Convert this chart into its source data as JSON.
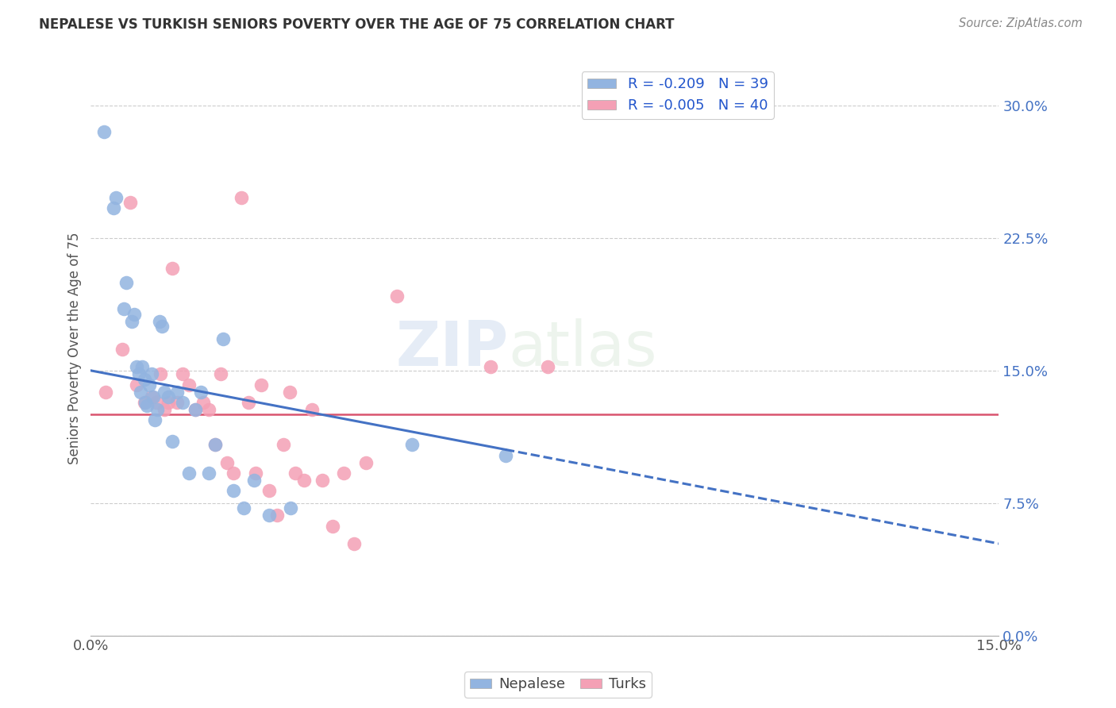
{
  "title": "NEPALESE VS TURKISH SENIORS POVERTY OVER THE AGE OF 75 CORRELATION CHART",
  "source": "Source: ZipAtlas.com",
  "ylabel_label": "Seniors Poverty Over the Age of 75",
  "ylabel_ticks": [
    0.0,
    7.5,
    15.0,
    22.5,
    30.0
  ],
  "xlim": [
    0.0,
    15.0
  ],
  "ylim": [
    0.0,
    32.5
  ],
  "nepalese_R": -0.209,
  "nepalese_N": 39,
  "turks_R": -0.005,
  "turks_N": 40,
  "nepalese_color": "#92b4e0",
  "turks_color": "#f4a0b5",
  "nepalese_line_color": "#4472c4",
  "turks_line_color": "#d9546e",
  "legend_R_color": "#2255cc",
  "nepalese_x": [
    0.22,
    0.38,
    0.42,
    0.55,
    0.58,
    0.68,
    0.72,
    0.76,
    0.8,
    0.82,
    0.85,
    0.88,
    0.9,
    0.93,
    0.96,
    1.0,
    1.03,
    1.06,
    1.1,
    1.14,
    1.18,
    1.22,
    1.28,
    1.35,
    1.42,
    1.52,
    1.62,
    1.72,
    1.82,
    1.95,
    2.05,
    2.18,
    2.35,
    2.52,
    2.7,
    2.95,
    3.3,
    5.3,
    6.85
  ],
  "nepalese_y": [
    28.5,
    24.2,
    24.8,
    18.5,
    20.0,
    17.8,
    18.2,
    15.2,
    14.8,
    13.8,
    15.2,
    14.5,
    13.2,
    13.0,
    14.2,
    14.8,
    13.5,
    12.2,
    12.8,
    17.8,
    17.5,
    13.8,
    13.5,
    11.0,
    13.8,
    13.2,
    9.2,
    12.8,
    13.8,
    9.2,
    10.8,
    16.8,
    8.2,
    7.2,
    8.8,
    6.8,
    7.2,
    10.8,
    10.2
  ],
  "turks_x": [
    0.25,
    0.52,
    0.65,
    0.75,
    0.88,
    1.0,
    1.08,
    1.15,
    1.22,
    1.28,
    1.35,
    1.42,
    1.52,
    1.62,
    1.72,
    1.85,
    1.95,
    2.05,
    2.15,
    2.25,
    2.35,
    2.48,
    2.6,
    2.72,
    2.82,
    2.95,
    3.08,
    3.18,
    3.28,
    3.38,
    3.52,
    3.65,
    3.82,
    4.0,
    4.18,
    4.35,
    4.55,
    5.05,
    6.6,
    7.55
  ],
  "turks_y": [
    13.8,
    16.2,
    24.5,
    14.2,
    13.2,
    13.5,
    13.2,
    14.8,
    12.8,
    13.2,
    20.8,
    13.2,
    14.8,
    14.2,
    12.8,
    13.2,
    12.8,
    10.8,
    14.8,
    9.8,
    9.2,
    24.8,
    13.2,
    9.2,
    14.2,
    8.2,
    6.8,
    10.8,
    13.8,
    9.2,
    8.8,
    12.8,
    8.8,
    6.2,
    9.2,
    5.2,
    9.8,
    19.2,
    15.2,
    15.2
  ],
  "nepalese_line_x0": 0.0,
  "nepalese_line_y0": 15.0,
  "nepalese_line_x1": 7.5,
  "nepalese_line_y1": 10.2,
  "nepalese_line_xend": 15.0,
  "nepalese_line_yend": 5.2,
  "turks_line_y": 12.5
}
